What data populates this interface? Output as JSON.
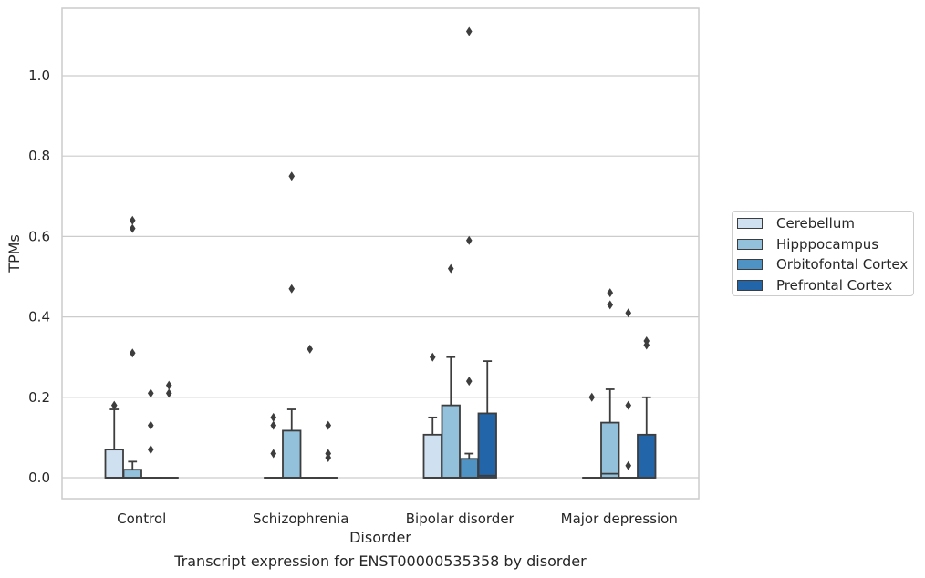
{
  "chart_data": {
    "type": "box",
    "xlabel": "Disorder",
    "ylabel": "TPMs",
    "caption": "Transcript expression for ENST00000535358 by disorder",
    "categories": [
      "Control",
      "Schizophrenia",
      "Bipolar disorder",
      "Major depression"
    ],
    "ylim": [
      -0.055,
      1.17
    ],
    "yticks": [
      0.0,
      0.2,
      0.4,
      0.6,
      0.8,
      1.0
    ],
    "ytick_labels": [
      "0.0",
      "0.2",
      "0.4",
      "0.6",
      "0.8",
      "1.0"
    ],
    "grid": "horizontal",
    "legend_position": "right",
    "series": [
      {
        "name": "Cerebellum",
        "color": "#cfe0f0",
        "boxes": [
          {
            "q1": 0.0,
            "median": 0.0,
            "q3": 0.07,
            "whisker_low": 0.0,
            "whisker_high": 0.17,
            "outliers": [
              0.18
            ]
          },
          {
            "q1": 0.0,
            "median": 0.0,
            "q3": 0.0,
            "whisker_low": 0.0,
            "whisker_high": 0.0,
            "outliers": [
              0.06,
              0.13,
              0.15
            ]
          },
          {
            "q1": 0.0,
            "median": 0.0,
            "q3": 0.107,
            "whisker_low": 0.0,
            "whisker_high": 0.15,
            "outliers": [
              0.3
            ]
          },
          {
            "q1": 0.0,
            "median": 0.0,
            "q3": 0.0,
            "whisker_low": 0.0,
            "whisker_high": 0.0,
            "outliers": [
              0.2
            ]
          }
        ]
      },
      {
        "name": "Hipppocampus",
        "color": "#93c1dc",
        "boxes": [
          {
            "q1": 0.0,
            "median": 0.0,
            "q3": 0.02,
            "whisker_low": 0.0,
            "whisker_high": 0.04,
            "outliers": [
              0.31,
              0.62,
              0.64
            ]
          },
          {
            "q1": 0.0,
            "median": 0.0,
            "q3": 0.117,
            "whisker_low": 0.0,
            "whisker_high": 0.17,
            "outliers": [
              0.47,
              0.75
            ]
          },
          {
            "q1": 0.0,
            "median": 0.0,
            "q3": 0.18,
            "whisker_low": 0.0,
            "whisker_high": 0.3,
            "outliers": [
              0.52
            ]
          },
          {
            "q1": 0.0,
            "median": 0.01,
            "q3": 0.137,
            "whisker_low": 0.0,
            "whisker_high": 0.22,
            "outliers": [
              0.43,
              0.46
            ]
          }
        ]
      },
      {
        "name": "Orbitofontal Cortex",
        "color": "#4f93c4",
        "boxes": [
          {
            "q1": 0.0,
            "median": 0.0,
            "q3": 0.0,
            "whisker_low": 0.0,
            "whisker_high": 0.0,
            "outliers": [
              0.07,
              0.13,
              0.21
            ]
          },
          {
            "q1": 0.0,
            "median": 0.0,
            "q3": 0.0,
            "whisker_low": 0.0,
            "whisker_high": 0.0,
            "outliers": [
              0.32
            ]
          },
          {
            "q1": 0.0,
            "median": 0.0,
            "q3": 0.047,
            "whisker_low": 0.0,
            "whisker_high": 0.06,
            "outliers": [
              0.24,
              0.59,
              1.11
            ]
          },
          {
            "q1": 0.0,
            "median": 0.0,
            "q3": 0.0,
            "whisker_low": 0.0,
            "whisker_high": 0.0,
            "outliers": [
              0.03,
              0.18,
              0.41
            ]
          }
        ]
      },
      {
        "name": "Prefrontal Cortex",
        "color": "#2265a8",
        "boxes": [
          {
            "q1": 0.0,
            "median": 0.0,
            "q3": 0.0,
            "whisker_low": 0.0,
            "whisker_high": 0.0,
            "outliers": [
              0.21,
              0.23
            ]
          },
          {
            "q1": 0.0,
            "median": 0.0,
            "q3": 0.0,
            "whisker_low": 0.0,
            "whisker_high": 0.0,
            "outliers": [
              0.05,
              0.06,
              0.13
            ]
          },
          {
            "q1": 0.0,
            "median": 0.005,
            "q3": 0.16,
            "whisker_low": 0.0,
            "whisker_high": 0.29,
            "outliers": []
          },
          {
            "q1": 0.0,
            "median": 0.0,
            "q3": 0.107,
            "whisker_low": 0.0,
            "whisker_high": 0.2,
            "outliers": [
              0.33,
              0.34
            ]
          }
        ]
      }
    ]
  }
}
